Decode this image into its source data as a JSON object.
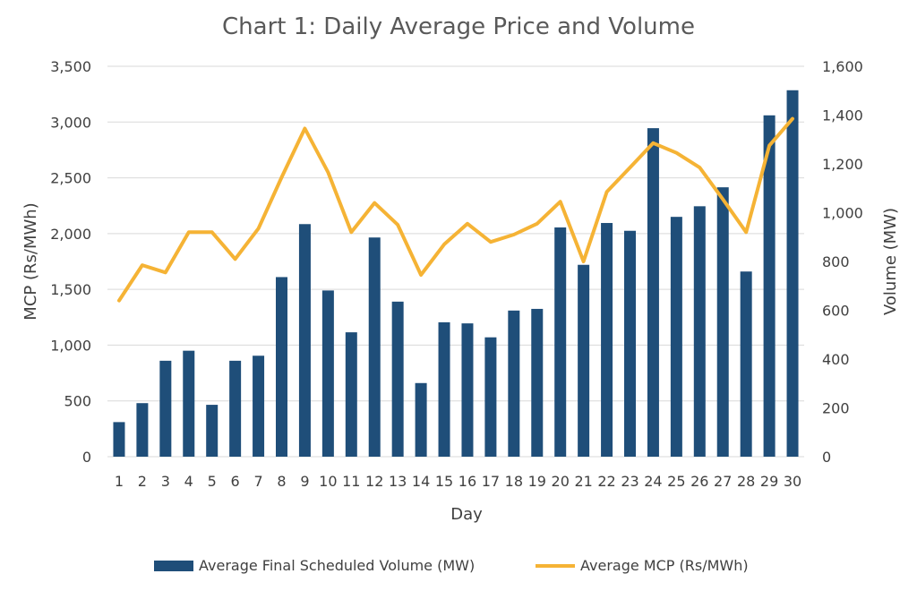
{
  "chart_data": {
    "type": "bar+line",
    "title": "Chart 1: Daily Average Price and Volume",
    "xlabel": "Day",
    "ylabel_left": "MCP (Rs/MWh)",
    "ylabel_right": "Volume (MW)",
    "categories": [
      "1",
      "2",
      "3",
      "4",
      "5",
      "6",
      "7",
      "8",
      "9",
      "10",
      "11",
      "12",
      "13",
      "14",
      "15",
      "16",
      "17",
      "18",
      "19",
      "20",
      "21",
      "22",
      "23",
      "24",
      "25",
      "26",
      "27",
      "28",
      "29",
      "30"
    ],
    "left_axis": {
      "range": [
        0,
        3500
      ],
      "ticks": [
        0,
        500,
        1000,
        1500,
        2000,
        2500,
        3000,
        3500
      ],
      "tick_labels": [
        "0",
        "500",
        "1,000",
        "1,500",
        "2,000",
        "2,500",
        "3,000",
        "3,500"
      ]
    },
    "right_axis": {
      "range": [
        0,
        1600
      ],
      "ticks": [
        0,
        200,
        400,
        600,
        800,
        1000,
        1200,
        1400,
        1600
      ],
      "tick_labels": [
        "0",
        "200",
        "400",
        "600",
        "800",
        "1,000",
        "1,200",
        "1,400",
        "1,600"
      ]
    },
    "grid": true,
    "legend_position": "bottom",
    "series": [
      {
        "name": "Average Final Scheduled Volume (MW)",
        "type": "bar",
        "axis": "left",
        "color": "#1f4e79",
        "values": [
          310,
          480,
          860,
          950,
          465,
          860,
          905,
          1610,
          2085,
          1490,
          1115,
          1965,
          1390,
          660,
          1205,
          1195,
          1070,
          1310,
          1325,
          2055,
          1720,
          2095,
          2025,
          2945,
          2150,
          2245,
          2415,
          1660,
          3060,
          3285
        ]
      },
      {
        "name": "Average MCP (Rs/MWh)",
        "type": "line",
        "axis": "right",
        "color": "#f5b335",
        "values": [
          640,
          785,
          755,
          920,
          920,
          810,
          935,
          1145,
          1345,
          1165,
          920,
          1040,
          950,
          745,
          870,
          955,
          880,
          910,
          955,
          1045,
          800,
          1085,
          1185,
          1285,
          1245,
          1185,
          1055,
          920,
          1275,
          1385
        ]
      }
    ]
  }
}
